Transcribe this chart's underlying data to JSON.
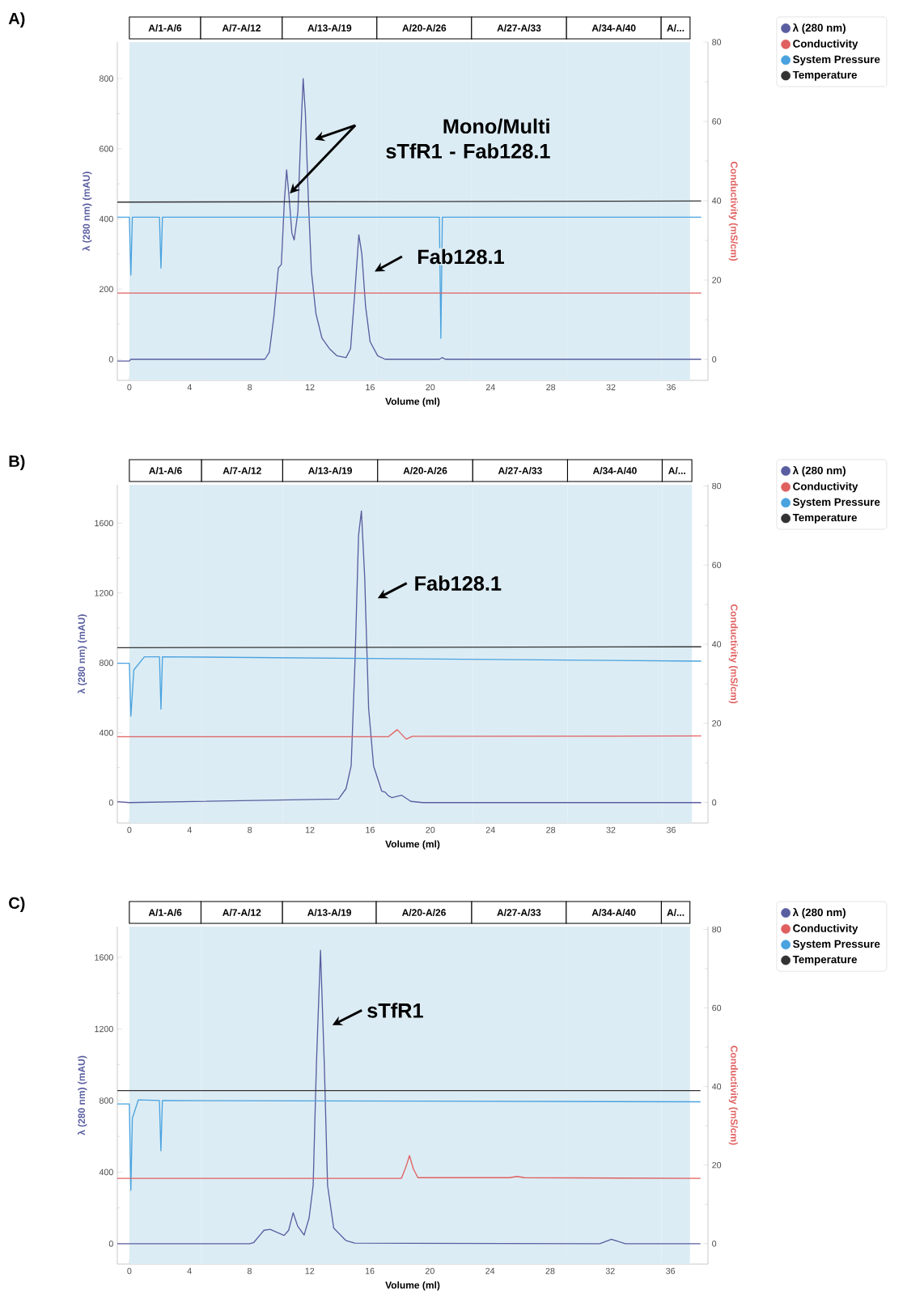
{
  "chart_data": [
    {
      "type": "line",
      "title": "A)",
      "xlabel": "Volume (ml)",
      "ylabel": "λ (280 nm) (mAU)",
      "y2label": "Conductivity (mS/cm)",
      "legend": "right",
      "xlim": [
        -0.8,
        38.45
      ],
      "ylim": [
        -60,
        904
      ],
      "y2lim": [
        -5.3,
        80
      ],
      "xticks": [
        0,
        4,
        8,
        12,
        16,
        20,
        24,
        28,
        32,
        36
      ],
      "yticks": [
        0,
        200,
        400,
        600,
        800
      ],
      "y2ticks": [
        0,
        20,
        40,
        60,
        80
      ],
      "series": [
        {
          "name": "λ (280 nm)",
          "color": "#5a5ea0",
          "x": [
            -0.8,
            0,
            0.1,
            9,
            9.3,
            9.6,
            9.9,
            10.1,
            10.3,
            10.45,
            10.6,
            10.8,
            10.95,
            11.2,
            11.4,
            11.55,
            11.7,
            11.9,
            12.1,
            12.4,
            12.8,
            13.3,
            13.8,
            14.4,
            14.7,
            15.0,
            15.25,
            15.45,
            15.7,
            16.0,
            16.5,
            17,
            20.6,
            20.8,
            21,
            38
          ],
          "values": [
            -5,
            -5,
            0,
            0,
            20,
            120,
            260,
            270,
            450,
            540,
            470,
            360,
            340,
            420,
            650,
            800,
            700,
            450,
            250,
            130,
            60,
            30,
            10,
            5,
            30,
            200,
            355,
            300,
            150,
            50,
            10,
            0,
            0,
            5,
            0,
            0
          ]
        },
        {
          "name": "Conductivity",
          "color": "#e06060",
          "axis": "y2",
          "x": [
            -0.8,
            38
          ],
          "values": [
            16.7,
            16.7
          ]
        },
        {
          "name": "System Pressure",
          "color": "#4aa3df",
          "x": [
            -0.8,
            0,
            0.1,
            0.2,
            2.0,
            2.1,
            2.2,
            20.6,
            20.7,
            20.8,
            38
          ],
          "values": [
            405,
            405,
            240,
            405,
            405,
            260,
            405,
            405,
            60,
            405,
            405
          ]
        },
        {
          "name": "Temperature",
          "color": "#333333",
          "x": [
            -0.8,
            38
          ],
          "values": [
            448,
            451
          ]
        }
      ],
      "bands": [
        {
          "axis": "x",
          "from": 0,
          "to": 4.74,
          "label": "A/1-A/6",
          "color": "#dcecf4"
        },
        {
          "axis": "x",
          "from": 4.74,
          "to": 10.16,
          "label": "A/7-A/12",
          "color": "#dcecf4"
        },
        {
          "axis": "x",
          "from": 10.16,
          "to": 16.45,
          "label": "A/13-A/19",
          "color": "#dcecf4"
        },
        {
          "axis": "x",
          "from": 16.45,
          "to": 22.74,
          "label": "A/20-A/26",
          "color": "#dcecf4"
        },
        {
          "axis": "x",
          "from": 22.74,
          "to": 29.05,
          "label": "A/27-A/33",
          "color": "#dcecf4"
        },
        {
          "axis": "x",
          "from": 29.05,
          "to": 35.34,
          "label": "A/34-A/40",
          "color": "#dcecf4"
        },
        {
          "axis": "x",
          "from": 35.34,
          "to": 37.26,
          "label": "A/...",
          "color": "#dcecf4"
        }
      ],
      "annotations": [
        "Mono/Multi sTfR1 - Fab128.1",
        {
          "text": "Fab128.1",
          "x": 16.3,
          "y": 250
        }
      ]
    },
    {
      "type": "line",
      "title": "B)",
      "xlabel": "Volume (ml)",
      "ylabel": "λ (280 nm) (mAU)",
      "y2label": "Conductivity (mS/cm)",
      "legend": "right",
      "xlim": [
        -0.8,
        38.45
      ],
      "ylim": [
        -117,
        1820
      ],
      "y2lim": [
        -5.2,
        80.3
      ],
      "xticks": [
        0,
        4,
        8,
        12,
        16,
        20,
        24,
        28,
        32,
        36
      ],
      "yticks": [
        0,
        400,
        800,
        1200,
        1600
      ],
      "y2ticks": [
        0,
        20,
        40,
        60,
        80
      ],
      "series": [
        {
          "name": "λ (280 nm)",
          "color": "#5a5ea0",
          "x": [
            -0.8,
            0,
            13.9,
            14.4,
            14.74,
            15.0,
            15.23,
            15.42,
            15.64,
            15.9,
            16.23,
            16.77,
            17.0,
            17.2,
            17.45,
            18.1,
            18.7,
            19.5,
            38
          ],
          "values": [
            5,
            0,
            20,
            80,
            211,
            820,
            1530,
            1670,
            1290,
            540,
            210,
            66,
            60,
            40,
            28,
            42,
            7,
            0,
            0
          ]
        },
        {
          "name": "Conductivity",
          "color": "#e06060",
          "axis": "y2",
          "x": [
            -0.8,
            17.2,
            17.8,
            18.4,
            18.8,
            38
          ],
          "values": [
            16.6,
            16.6,
            18.4,
            16.0,
            16.7,
            16.8
          ]
        },
        {
          "name": "System Pressure",
          "color": "#4aa3df",
          "x": [
            -0.8,
            0,
            0.1,
            0.3,
            1.0,
            2.0,
            2.1,
            2.2,
            38
          ],
          "values": [
            798,
            798,
            495,
            760,
            835,
            835,
            535,
            835,
            810
          ]
        },
        {
          "name": "Temperature",
          "color": "#333333",
          "x": [
            -0.8,
            38
          ],
          "values": [
            887,
            892
          ]
        }
      ],
      "bands": [
        {
          "axis": "x",
          "from": 0,
          "to": 4.8,
          "label": "A/1-A/6",
          "color": "#dcecf4"
        },
        {
          "axis": "x",
          "from": 4.8,
          "to": 10.19,
          "label": "A/7-A/12",
          "color": "#dcecf4"
        },
        {
          "axis": "x",
          "from": 10.19,
          "to": 16.5,
          "label": "A/13-A/19",
          "color": "#dcecf4"
        },
        {
          "axis": "x",
          "from": 16.5,
          "to": 22.82,
          "label": "A/20-A/26",
          "color": "#dcecf4"
        },
        {
          "axis": "x",
          "from": 22.82,
          "to": 29.12,
          "label": "A/27-A/33",
          "color": "#dcecf4"
        },
        {
          "axis": "x",
          "from": 29.12,
          "to": 35.41,
          "label": "A/34-A/40",
          "color": "#dcecf4"
        },
        {
          "axis": "x",
          "from": 35.41,
          "to": 37.38,
          "label": "A/...",
          "color": "#dcecf4"
        }
      ],
      "annotations": [
        {
          "text": "Fab128.1",
          "x": 16.5,
          "y": 1170
        }
      ]
    },
    {
      "type": "line",
      "title": "C)",
      "xlabel": "Volume (ml)",
      "ylabel": "λ (280 nm) (mAU)",
      "y2label": "Conductivity (mS/cm)",
      "legend": "right",
      "xlim": [
        -0.8,
        38.5
      ],
      "ylim": [
        -114,
        1772
      ],
      "y2lim": [
        -5.2,
        80.7
      ],
      "xticks": [
        0,
        4,
        8,
        12,
        16,
        20,
        24,
        28,
        32,
        36
      ],
      "yticks": [
        0,
        400,
        800,
        1200,
        1600
      ],
      "y2ticks": [
        0,
        20,
        40,
        60,
        80
      ],
      "series": [
        {
          "name": "λ (280 nm)",
          "color": "#5a5ea0",
          "x": [
            -0.8,
            8.0,
            8.28,
            8.96,
            9.37,
            10.3,
            10.6,
            10.9,
            11.2,
            11.63,
            11.96,
            12.23,
            12.45,
            12.72,
            12.97,
            13.19,
            13.6,
            14.4,
            15,
            31.3,
            32.07,
            33,
            38
          ],
          "values": [
            0,
            0,
            7,
            75,
            80,
            46,
            75,
            173,
            98,
            48,
            144,
            326,
            1010,
            1640,
            1010,
            326,
            87,
            18,
            3,
            0,
            25,
            0,
            0
          ]
        },
        {
          "name": "Conductivity",
          "color": "#e06060",
          "axis": "y2",
          "x": [
            -0.8,
            18.1,
            18.4,
            18.64,
            18.9,
            19.2,
            25.3,
            25.8,
            26.3,
            38
          ],
          "values": [
            16.6,
            16.6,
            19.5,
            22.4,
            19.0,
            16.8,
            16.8,
            17.1,
            16.8,
            16.6
          ]
        },
        {
          "name": "System Pressure",
          "color": "#4aa3df",
          "x": [
            -0.8,
            0,
            0.1,
            0.2,
            0.6,
            2.0,
            2.1,
            2.2,
            38
          ],
          "values": [
            781,
            781,
            298,
            700,
            804,
            800,
            519,
            800,
            793
          ]
        },
        {
          "name": "Temperature",
          "color": "#333333",
          "x": [
            -0.8,
            38
          ],
          "values": [
            856,
            856
          ]
        }
      ],
      "bands": [
        {
          "axis": "x",
          "from": 0,
          "to": 4.77,
          "label": "A/1-A/6",
          "color": "#dcecf4"
        },
        {
          "axis": "x",
          "from": 4.77,
          "to": 10.19,
          "label": "A/7-A/12",
          "color": "#dcecf4"
        },
        {
          "axis": "x",
          "from": 10.19,
          "to": 16.43,
          "label": "A/13-A/19",
          "color": "#dcecf4"
        },
        {
          "axis": "x",
          "from": 16.43,
          "to": 22.78,
          "label": "A/20-A/26",
          "color": "#dcecf4"
        },
        {
          "axis": "x",
          "from": 22.78,
          "to": 29.07,
          "label": "A/27-A/33",
          "color": "#dcecf4"
        },
        {
          "axis": "x",
          "from": 29.07,
          "to": 35.4,
          "label": "A/34-A/40",
          "color": "#dcecf4"
        },
        {
          "axis": "x",
          "from": 35.4,
          "to": 37.3,
          "label": "A/...",
          "color": "#dcecf4"
        }
      ],
      "annotations": [
        "sTfR1"
      ]
    }
  ]
}
